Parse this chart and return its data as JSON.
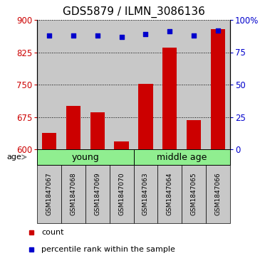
{
  "title": "GDS5879 / ILMN_3086136",
  "samples": [
    "GSM1847067",
    "GSM1847068",
    "GSM1847069",
    "GSM1847070",
    "GSM1847063",
    "GSM1847064",
    "GSM1847065",
    "GSM1847066"
  ],
  "counts": [
    638,
    700,
    685,
    618,
    752,
    835,
    668,
    878
  ],
  "percentile_ranks": [
    88,
    88,
    88,
    87,
    89,
    91,
    88,
    92
  ],
  "groups": [
    {
      "label": "young",
      "start": 0,
      "end": 4,
      "color": "#90ee90"
    },
    {
      "label": "middle age",
      "start": 4,
      "end": 8,
      "color": "#90ee90"
    }
  ],
  "ylim_left": [
    600,
    900
  ],
  "ylim_right": [
    0,
    100
  ],
  "yticks_left": [
    600,
    675,
    750,
    825,
    900
  ],
  "yticks_right": [
    0,
    25,
    50,
    75,
    100
  ],
  "ytick_labels_right": [
    "0",
    "25",
    "50",
    "75",
    "100%"
  ],
  "bar_color": "#cc0000",
  "dot_color": "#0000cc",
  "background_color": "#ffffff",
  "age_label": "age",
  "legend_count_label": "count",
  "legend_pct_label": "percentile rank within the sample",
  "grid_color": "#000000",
  "bar_width": 0.6,
  "sample_bg_color": "#c8c8c8",
  "group_label_fontsize": 9,
  "tick_fontsize": 8.5,
  "title_fontsize": 11,
  "sample_fontsize": 6.5
}
